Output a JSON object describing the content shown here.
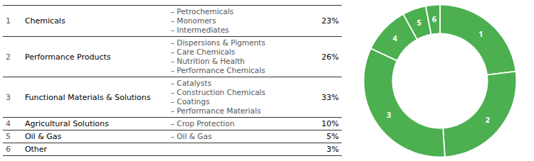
{
  "chart_data": {
    "type": "donut",
    "ids": [
      1,
      2,
      3,
      4,
      5,
      6
    ],
    "categories": [
      "Chemicals",
      "Performance Products",
      "Functional Materials & Solutions",
      "Agricultural Solutions",
      "Oil & Gas",
      "Other"
    ],
    "values": [
      23,
      26,
      33,
      10,
      5,
      3
    ],
    "value_labels": [
      "23%",
      "26%",
      "33%",
      "10%",
      "5%",
      "3%"
    ],
    "subitems": [
      [
        "– Petrochemicals",
        "– Monomers",
        "– Intermediates"
      ],
      [
        "– Dispersions & Pigments",
        "– Care Chemicals",
        "– Nutrition & Health",
        "– Performance Chemicals"
      ],
      [
        "– Catalysts",
        "– Construction Chemicals",
        "– Coatings",
        "– Performance Materials"
      ],
      [
        "– Crop Protection"
      ],
      [
        "– Oil & Gas"
      ],
      []
    ],
    "color": "#4caf50"
  }
}
